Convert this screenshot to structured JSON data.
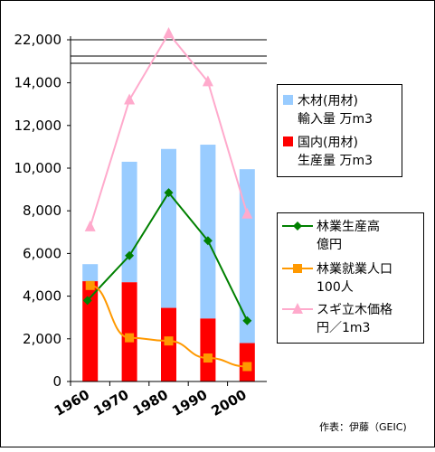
{
  "chart_data": {
    "type": "bar",
    "categories": [
      "1960",
      "1970",
      "1980",
      "1990",
      "2000"
    ],
    "y_tick_labels": [
      "0",
      "2,000",
      "4,000",
      "6,000",
      "8,000",
      "10,000",
      "12,000",
      "14,000",
      "22,000"
    ],
    "stacked_bars": [
      {
        "name": "国内(用材)生産量 万m3",
        "values": [
          4700,
          4650,
          3450,
          2950,
          1800
        ],
        "color": "#ff0000"
      },
      {
        "name": "木材(用材)輸入量 万m3",
        "values": [
          800,
          5650,
          7450,
          8150,
          8150
        ],
        "color": "#99ccff"
      }
    ],
    "lines": [
      {
        "name": "林業生産高億円",
        "values": [
          3800,
          5900,
          8850,
          6600,
          2850
        ],
        "color": "#008000",
        "marker": "diamond"
      },
      {
        "name": "林業就業人口100人",
        "values": [
          4500,
          2050,
          1900,
          1100,
          700
        ],
        "color": "#ff9900",
        "marker": "square"
      },
      {
        "name": "スギ立木価格円／1m3",
        "values": [
          7250,
          13200,
          22800,
          14200,
          7850
        ],
        "color": "#ffaacc",
        "marker": "triangle"
      }
    ],
    "axis_break": true,
    "grid": false
  },
  "legend_top": [
    {
      "line1": "木材(用材)",
      "line2": "輸入量 万m3",
      "color": "#99ccff"
    },
    {
      "line1": "国内(用材)",
      "line2": "生産量 万m3",
      "color": "#ff0000"
    }
  ],
  "legend_bottom": [
    {
      "line1": "林業生産高",
      "line2": "億円",
      "color": "#008000",
      "marker": "diamond"
    },
    {
      "line1": "林業就業人口",
      "line2": "100人",
      "color": "#ff9900",
      "marker": "square"
    },
    {
      "line1": "スギ立木価格",
      "line2": "円／1m3",
      "color": "#ffaacc",
      "marker": "triangle"
    }
  ],
  "credit": "作表：伊藤（GEIC)"
}
